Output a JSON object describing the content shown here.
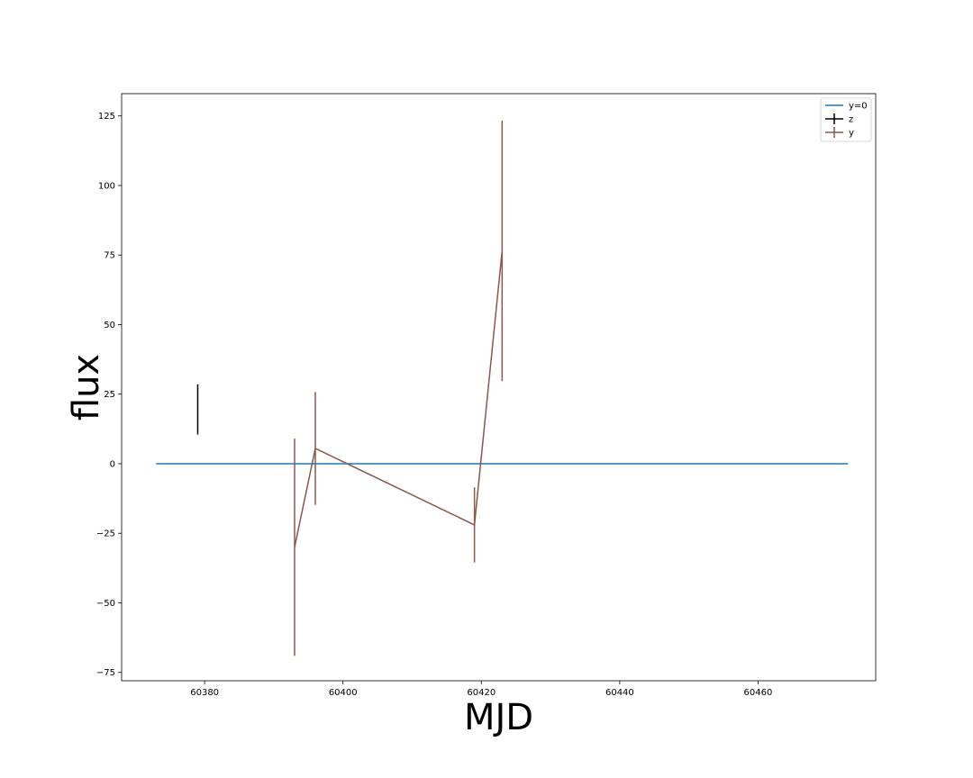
{
  "chart_data": {
    "type": "line",
    "xlabel": "MJD",
    "ylabel": "flux",
    "xlim": [
      60368,
      60477
    ],
    "ylim": [
      -78,
      133
    ],
    "xticks": [
      60380,
      60400,
      60420,
      60440,
      60460
    ],
    "yticks": [
      -75,
      -50,
      -25,
      0,
      25,
      50,
      75,
      100,
      125
    ],
    "grid": false,
    "legend_position": "top-right",
    "series": [
      {
        "name": "y=0",
        "kind": "line",
        "color": "#1f77b4",
        "x": [
          60373,
          60473
        ],
        "y": [
          0,
          0
        ]
      },
      {
        "name": "z",
        "kind": "errorbar",
        "color": "#000000",
        "x": [
          60379
        ],
        "y": [
          19.5
        ],
        "yerr": [
          9
        ]
      },
      {
        "name": "y",
        "kind": "errorbar",
        "color": "#8c564b",
        "x": [
          60393,
          60396,
          60419,
          60423
        ],
        "y": [
          -30,
          5.5,
          -22,
          76.5
        ],
        "yerr": [
          39,
          20.3,
          13.5,
          46.8
        ]
      }
    ]
  }
}
